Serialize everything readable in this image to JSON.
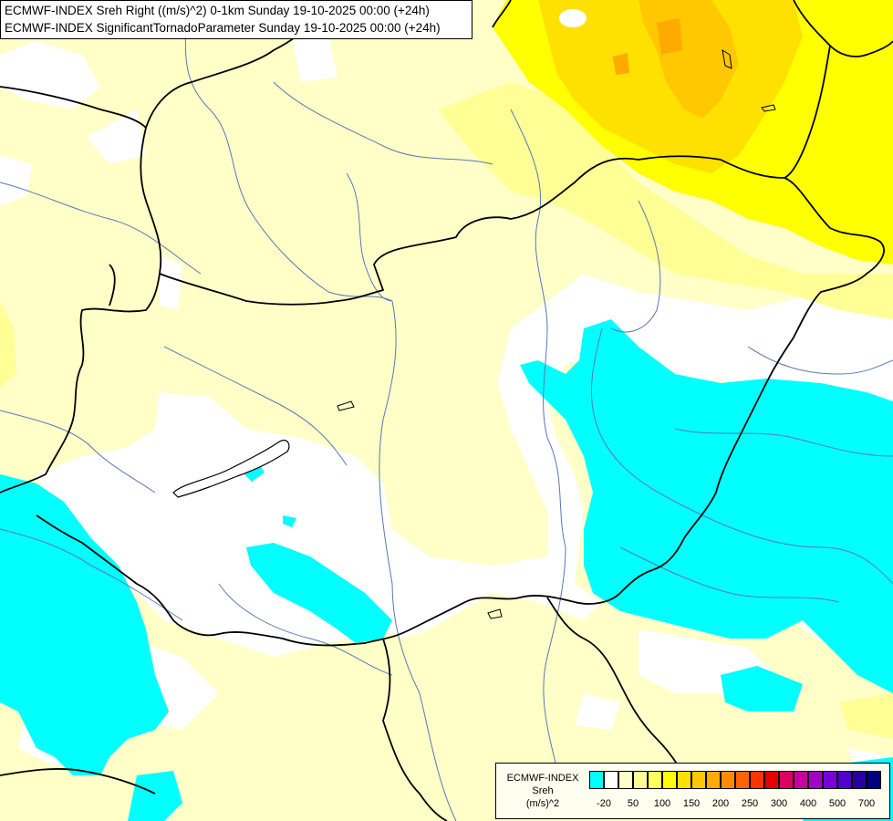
{
  "title": {
    "line1": "ECMWF-INDEX Sreh Right ((m/s)^2) 0-1km Sunday 19-10-2025 00:00 (+24h)",
    "line2": "ECMWF-INDEX SignificantTornadoParameter Sunday 19-10-2025 00:00 (+24h)"
  },
  "legend": {
    "line1": "ECMWF-INDEX",
    "line2": "Sreh",
    "line3": "(m/s)^2",
    "colors": [
      "#00ffff",
      "#ffffff",
      "#ffffc8",
      "#ffff96",
      "#ffff64",
      "#ffff00",
      "#ffe100",
      "#ffc800",
      "#ffaa00",
      "#ff8c00",
      "#ff6400",
      "#ff3200",
      "#e60000",
      "#dc0064",
      "#c800a0",
      "#a000c8",
      "#7800dc",
      "#5000c8",
      "#2800a0",
      "#000080"
    ],
    "ticks": [
      "-20",
      "50",
      "100",
      "150",
      "200",
      "250",
      "300",
      "400",
      "500",
      "700"
    ]
  },
  "map_colors": {
    "cyan": "#00ffff",
    "pale_yellow": "#ffffc8",
    "light_yellow": "#ffff96",
    "yellow": "#ffff00",
    "gold": "#ffe100",
    "orange": "#ffc800",
    "border": "#000000",
    "river": "#5a78b4"
  }
}
